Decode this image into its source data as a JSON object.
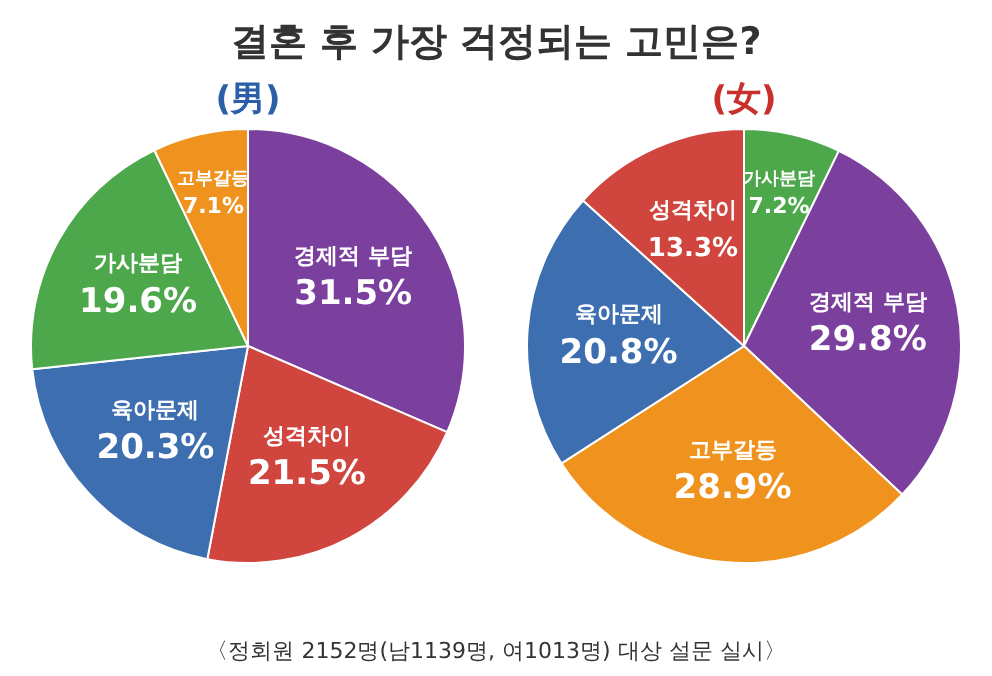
{
  "chart_data": [
    {
      "type": "pie",
      "title": "결혼 후 가장 걱정되는 고민은?",
      "subtitle": "(男)",
      "categories": [
        "경제적 부담",
        "성격차이",
        "육아문제",
        "가사분담",
        "고부갈등"
      ],
      "values": [
        31.5,
        21.5,
        20.3,
        19.6,
        7.1
      ],
      "value_labels": [
        "31.5%",
        "21.5%",
        "20.3%",
        "19.6%",
        "7.1%"
      ],
      "colors": [
        "#7b3f9e",
        "#d0463e",
        "#3d6fb0",
        "#4ca84a",
        "#f0921e"
      ],
      "legend": false
    },
    {
      "type": "pie",
      "subtitle": "(女)",
      "categories": [
        "가사분담",
        "경제적 부담",
        "고부갈등",
        "육아문제",
        "성격차이"
      ],
      "values": [
        7.2,
        29.8,
        28.9,
        20.8,
        13.3
      ],
      "value_labels": [
        "7.2%",
        "29.8%",
        "28.9%",
        "20.8%",
        "13.3%"
      ],
      "colors": [
        "#4ca84a",
        "#7b3f9e",
        "#f0921e",
        "#3d6fb0",
        "#d0463e"
      ],
      "legend": false,
      "annotations": [
        "〈정회원 2152명(남1139명, 여1013명) 대상 설문 실시〉"
      ]
    }
  ]
}
